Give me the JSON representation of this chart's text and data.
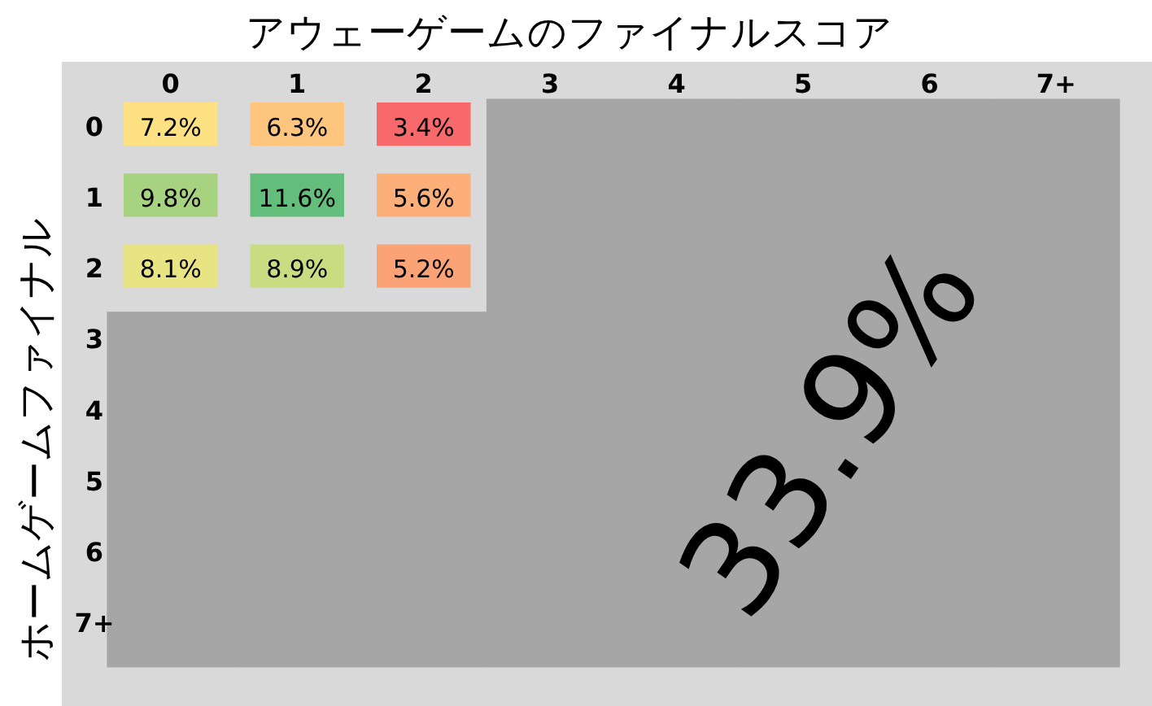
{
  "chart_data": {
    "type": "heatmap",
    "title": "アウェーゲームのファイナルスコア",
    "ylabel": "ホームゲームファイナル",
    "categories": [
      "0",
      "1",
      "2",
      "3",
      "4",
      "5",
      "6",
      "7+"
    ],
    "y_categories": [
      "0",
      "1",
      "2",
      "3",
      "4",
      "5",
      "6",
      "7+"
    ],
    "cells": [
      [
        7.2,
        6.3,
        3.4,
        null,
        null,
        null,
        null,
        null
      ],
      [
        9.8,
        11.6,
        5.6,
        null,
        null,
        null,
        null,
        null
      ],
      [
        8.1,
        8.9,
        5.2,
        null,
        null,
        null,
        null,
        null
      ],
      [
        null,
        null,
        null,
        null,
        null,
        null,
        null,
        null
      ],
      [
        null,
        null,
        null,
        null,
        null,
        null,
        null,
        null
      ],
      [
        null,
        null,
        null,
        null,
        null,
        null,
        null,
        null
      ],
      [
        null,
        null,
        null,
        null,
        null,
        null,
        null,
        null
      ],
      [
        null,
        null,
        null,
        null,
        null,
        null,
        null,
        null
      ]
    ],
    "cell_labels": [
      [
        "7.2%",
        "6.3%",
        "3.4%",
        null,
        null,
        null,
        null,
        null
      ],
      [
        "9.8%",
        "11.6%",
        "5.6%",
        null,
        null,
        null,
        null,
        null
      ],
      [
        "8.1%",
        "8.9%",
        "5.2%",
        null,
        null,
        null,
        null,
        null
      ],
      [
        null,
        null,
        null,
        null,
        null,
        null,
        null,
        null
      ],
      [
        null,
        null,
        null,
        null,
        null,
        null,
        null,
        null
      ],
      [
        null,
        null,
        null,
        null,
        null,
        null,
        null,
        null
      ],
      [
        null,
        null,
        null,
        null,
        null,
        null,
        null,
        null
      ],
      [
        null,
        null,
        null,
        null,
        null,
        null,
        null,
        null
      ]
    ],
    "annotations": [
      "33.9%"
    ]
  }
}
